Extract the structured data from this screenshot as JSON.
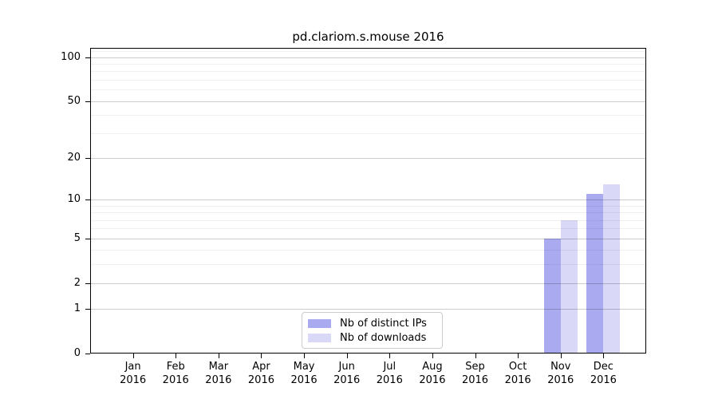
{
  "chart_data": {
    "type": "bar",
    "title": "pd.clariom.s.mouse 2016",
    "categories": [
      "Jan 2016",
      "Feb 2016",
      "Mar 2016",
      "Apr 2016",
      "May 2016",
      "Jun 2016",
      "Jul 2016",
      "Aug 2016",
      "Sep 2016",
      "Oct 2016",
      "Nov 2016",
      "Dec 2016"
    ],
    "series": [
      {
        "name": "Nb of distinct IPs",
        "color": "#aaaaf0",
        "values": [
          0,
          0,
          0,
          0,
          0,
          0,
          0,
          0,
          0,
          0,
          5,
          11
        ]
      },
      {
        "name": "Nb of downloads",
        "color": "#d9d9f7",
        "values": [
          0,
          0,
          0,
          0,
          0,
          0,
          0,
          0,
          0,
          0,
          7,
          13
        ]
      }
    ],
    "xlabel": "",
    "ylabel": "",
    "yscale": "log10(1+y)",
    "ylim": [
      0,
      115.7
    ],
    "yticks_major": [
      0,
      1,
      2,
      5,
      10,
      20,
      50,
      100
    ],
    "yticks_minor": [
      3,
      4,
      6,
      7,
      8,
      9,
      30,
      40,
      60,
      70,
      80,
      90,
      110
    ],
    "grid": "horizontal, major and minor, drawn over bars",
    "legend_position": "lower center inside plot"
  },
  "colors": {
    "background": "#ffffff",
    "axis": "#000000",
    "grid_major": "#00000033",
    "grid_minor": "#0000000f",
    "legend_border": "#cccccc",
    "bar_distinct_ips": "#aaaaf0",
    "bar_downloads": "#d9d9f7"
  }
}
